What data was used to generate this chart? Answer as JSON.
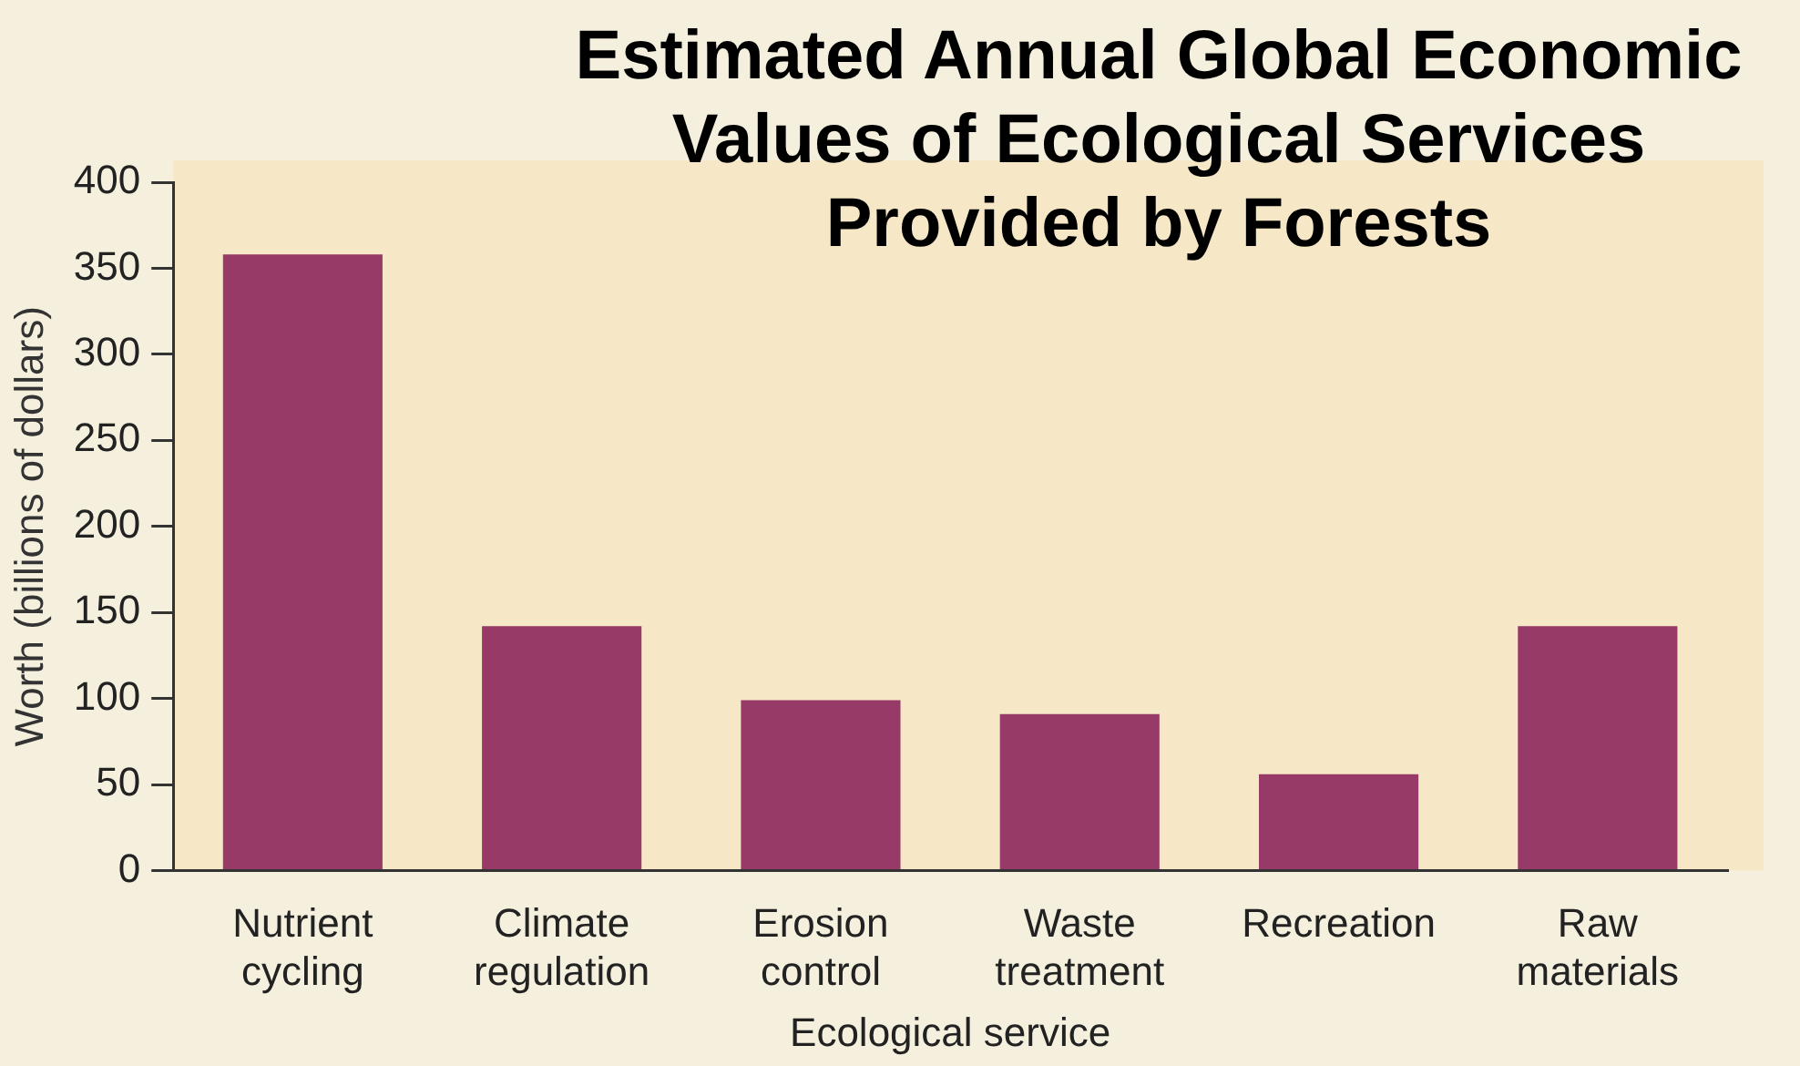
{
  "chart_data": {
    "type": "bar",
    "title": "Estimated Annual Global Economic Values of Ecological Services Provided by Forests",
    "xlabel": "Ecological service",
    "ylabel": "Worth (billions of dollars)",
    "categories": [
      "Nutrient cycling",
      "Climate regulation",
      "Erosion control",
      "Waste treatment",
      "Recreation",
      "Raw materials"
    ],
    "values": [
      358,
      142,
      99,
      91,
      56,
      142
    ],
    "color": "#973a68",
    "ylim": [
      0,
      400
    ],
    "yticks": [
      0,
      50,
      100,
      150,
      200,
      250,
      300,
      350,
      400
    ],
    "grid": false
  }
}
